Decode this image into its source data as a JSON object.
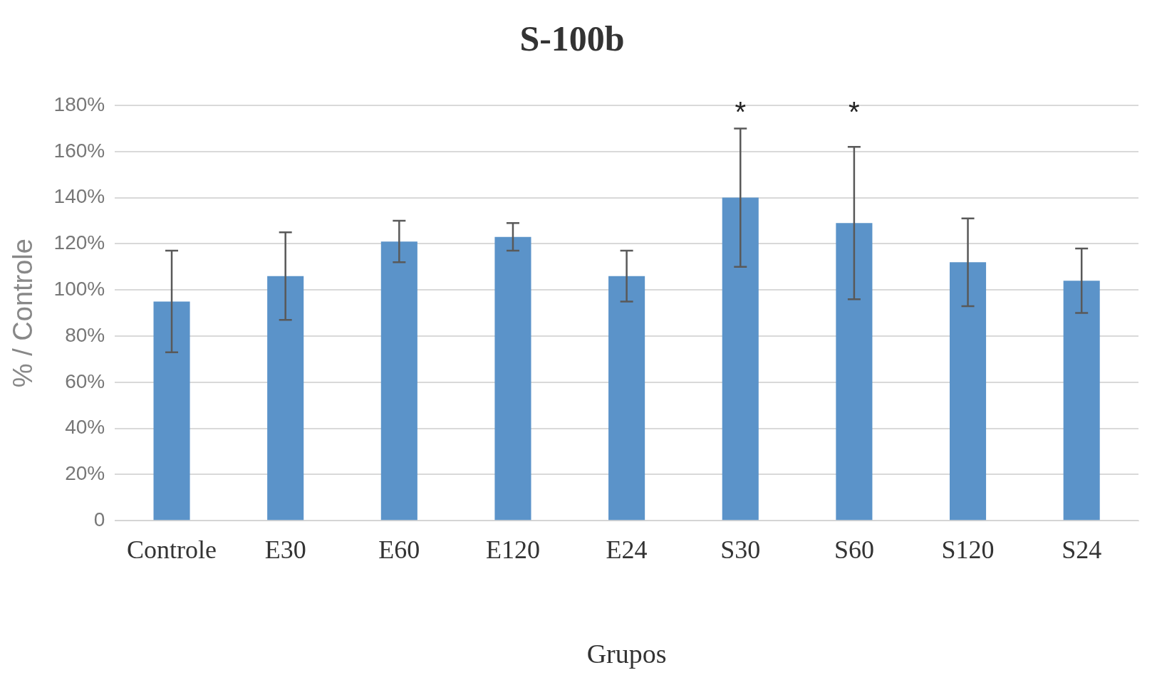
{
  "chart_data": {
    "type": "bar",
    "title": "S-100b",
    "xlabel": "Grupos",
    "ylabel": "% / Controle",
    "categories": [
      "Controle",
      "E30",
      "E60",
      "E120",
      "E24",
      "S30",
      "S60",
      "S120",
      "S24"
    ],
    "values": [
      95,
      106,
      121,
      123,
      106,
      140,
      129,
      112,
      104
    ],
    "errors": [
      22,
      19,
      9,
      6,
      11,
      30,
      33,
      19,
      14
    ],
    "color": "#5b93c9",
    "ylim": [
      0,
      180
    ],
    "yticks": [
      0,
      {
        "value": 20,
        "label": "20%"
      },
      {
        "value": 40,
        "label": "40%"
      },
      {
        "value": 60,
        "label": "60%"
      },
      {
        "value": 80,
        "label": "80%"
      },
      {
        "value": 100,
        "label": "100%"
      },
      {
        "value": 120,
        "label": "120%"
      },
      {
        "value": 140,
        "label": "140%"
      },
      {
        "value": 160,
        "label": "160%"
      },
      {
        "value": 180,
        "label": "180%"
      }
    ],
    "grid": "y",
    "annotations": [
      "*",
      "*"
    ]
  }
}
